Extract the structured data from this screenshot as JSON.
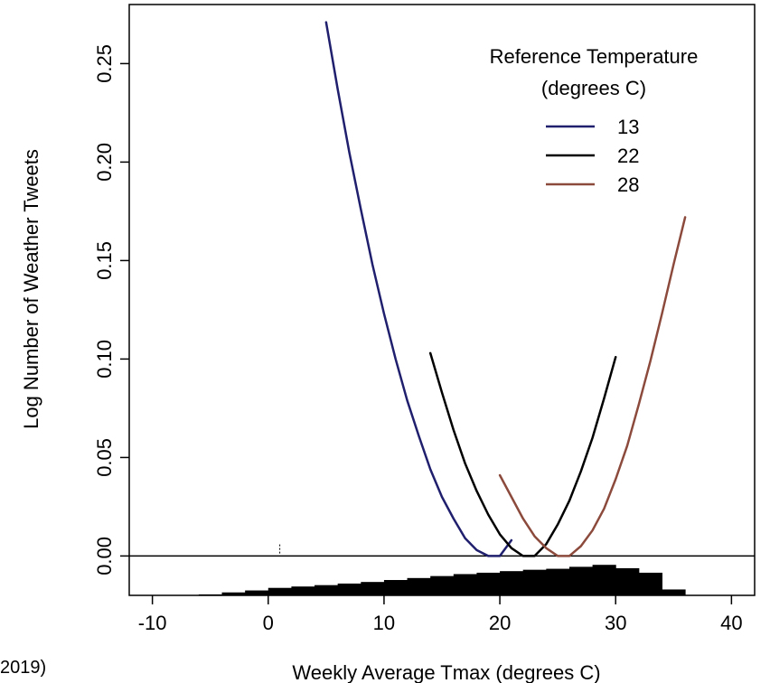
{
  "fragment_text": "2019)",
  "chart_data": {
    "type": "line",
    "title": "",
    "xlabel": "Weekly Average Tmax (degrees C)",
    "ylabel": "Log Number of Weather Tweets",
    "xlim": [
      -12,
      42
    ],
    "ylim": [
      -0.02,
      0.28
    ],
    "x_ticks": [
      -10,
      0,
      10,
      20,
      30,
      40
    ],
    "x_tick_labels": [
      "-10",
      "0",
      "10",
      "20",
      "30",
      "40"
    ],
    "y_ticks": [
      0.0,
      0.05,
      0.1,
      0.15,
      0.2,
      0.25
    ],
    "y_tick_labels": [
      "0.00",
      "0.05",
      "0.10",
      "0.15",
      "0.20",
      "0.25"
    ],
    "grid": false,
    "legend": {
      "title_line1": "Reference Temperature",
      "title_line2": "(degrees C)",
      "placement": "top-right"
    },
    "series": [
      {
        "name": "13",
        "color": "#1f1f6e",
        "x": [
          5,
          6,
          7,
          8,
          9,
          10,
          11,
          12,
          13,
          14,
          15,
          16,
          17,
          18,
          19,
          20,
          21
        ],
        "y": [
          0.271,
          0.237,
          0.205,
          0.176,
          0.148,
          0.123,
          0.1,
          0.079,
          0.061,
          0.044,
          0.03,
          0.019,
          0.009,
          0.003,
          0.0,
          0.0,
          0.008
        ]
      },
      {
        "name": "22",
        "color": "#000000",
        "x": [
          14,
          15,
          16,
          17,
          18,
          19,
          20,
          21,
          22,
          23,
          24,
          25,
          26,
          27,
          28,
          29,
          30
        ],
        "y": [
          0.103,
          0.083,
          0.064,
          0.047,
          0.033,
          0.021,
          0.011,
          0.004,
          0.0,
          0.0,
          0.006,
          0.016,
          0.028,
          0.043,
          0.06,
          0.08,
          0.101
        ]
      },
      {
        "name": "28",
        "color": "#8b4a3c",
        "x": [
          20,
          21,
          22,
          23,
          24,
          25,
          26,
          27,
          28,
          29,
          30,
          31,
          32,
          33,
          34,
          35,
          36
        ],
        "y": [
          0.041,
          0.03,
          0.019,
          0.01,
          0.004,
          0.0,
          0.0,
          0.005,
          0.013,
          0.024,
          0.039,
          0.056,
          0.077,
          0.099,
          0.123,
          0.148,
          0.172
        ]
      }
    ],
    "histogram": {
      "color": "#000000",
      "bins": [
        {
          "x0": -6,
          "x1": -4,
          "value": 0.0005
        },
        {
          "x0": -4,
          "x1": -2,
          "value": 0.0015
        },
        {
          "x0": -2,
          "x1": 0,
          "value": 0.0025
        },
        {
          "x0": 0,
          "x1": 2,
          "value": 0.0038
        },
        {
          "x0": 2,
          "x1": 4,
          "value": 0.0045
        },
        {
          "x0": 4,
          "x1": 6,
          "value": 0.0052
        },
        {
          "x0": 6,
          "x1": 8,
          "value": 0.006
        },
        {
          "x0": 8,
          "x1": 10,
          "value": 0.0068
        },
        {
          "x0": 10,
          "x1": 12,
          "value": 0.0078
        },
        {
          "x0": 12,
          "x1": 14,
          "value": 0.0088
        },
        {
          "x0": 14,
          "x1": 16,
          "value": 0.0098
        },
        {
          "x0": 16,
          "x1": 18,
          "value": 0.0108
        },
        {
          "x0": 18,
          "x1": 20,
          "value": 0.0115
        },
        {
          "x0": 20,
          "x1": 22,
          "value": 0.0123
        },
        {
          "x0": 22,
          "x1": 24,
          "value": 0.013
        },
        {
          "x0": 24,
          "x1": 26,
          "value": 0.0135
        },
        {
          "x0": 26,
          "x1": 28,
          "value": 0.0145
        },
        {
          "x0": 28,
          "x1": 30,
          "value": 0.0155
        },
        {
          "x0": 30,
          "x1": 32,
          "value": 0.0138
        },
        {
          "x0": 32,
          "x1": 34,
          "value": 0.0115
        },
        {
          "x0": 34,
          "x1": 36,
          "value": 0.003
        }
      ]
    }
  }
}
